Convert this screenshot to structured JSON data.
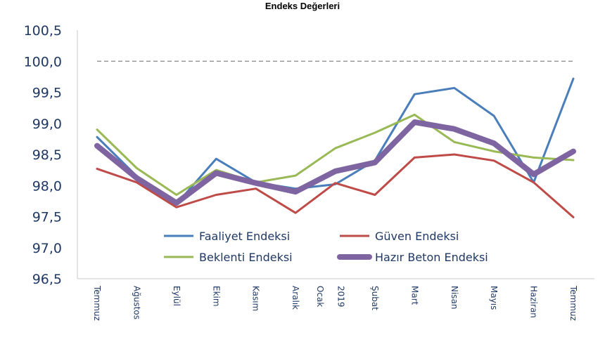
{
  "chart_data": {
    "type": "line",
    "title": "Endeks Değerleri",
    "categories": [
      "Temmuz",
      "Ağustos",
      "Eylül",
      "Ekim",
      "Kasım",
      "Aralık",
      "Ocak 2019",
      "Şubat",
      "Mart",
      "Nisan",
      "Mayıs",
      "Haziran",
      "Temmuz"
    ],
    "category_labels": [
      "Temmuz",
      "Ağustos",
      "Eylül",
      "Ekim",
      "Kasım",
      "Aralık",
      "Ocak",
      "2019",
      "Şubat",
      "Mart",
      "Nisan",
      "Mayıs",
      "Haziran",
      "Temmuz"
    ],
    "yticks": [
      "96,5",
      "97,0",
      "97,5",
      "98,0",
      "98,5",
      "99,0",
      "99,5",
      "100,0",
      "100,5"
    ],
    "ylim": [
      96.5,
      100.5
    ],
    "reference_line": 100.0,
    "series": [
      {
        "name": "Faaliyet Endeksi",
        "color": "#4a7ebb",
        "values": [
          98.78,
          98.15,
          97.7,
          98.43,
          98.05,
          97.95,
          98.02,
          98.4,
          99.47,
          99.57,
          99.12,
          98.05,
          99.72
        ]
      },
      {
        "name": "Güven Endeksi",
        "color": "#be4b48",
        "values": [
          98.27,
          98.05,
          97.65,
          97.85,
          97.95,
          97.56,
          98.04,
          97.85,
          98.45,
          98.5,
          98.4,
          98.05,
          97.49
        ]
      },
      {
        "name": "Beklenti Endeksi",
        "color": "#98b954",
        "values": [
          98.9,
          98.28,
          97.85,
          98.25,
          98.05,
          98.16,
          98.6,
          98.85,
          99.14,
          98.7,
          98.55,
          98.45,
          98.41
        ]
      },
      {
        "name": "Hazır Beton Endeksi",
        "color": "#7e64a0",
        "values": [
          98.64,
          98.12,
          97.72,
          98.2,
          98.04,
          97.9,
          98.23,
          98.37,
          99.02,
          98.91,
          98.68,
          98.18,
          98.55
        ]
      }
    ],
    "legend_position": "inside-bottom-center"
  }
}
